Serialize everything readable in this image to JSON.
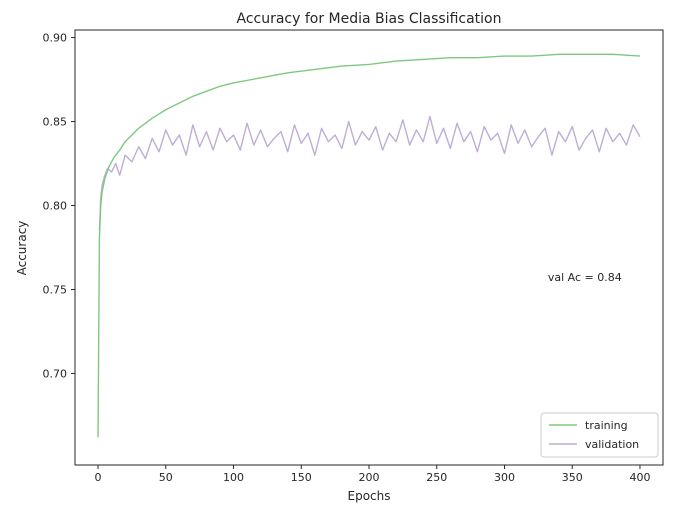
{
  "chart_data": {
    "type": "line",
    "title": "Accuracy for Media Bias Classification",
    "xlabel": "Epochs",
    "ylabel": "Accuracy",
    "xlim": [
      -17,
      417
    ],
    "ylim": [
      0.6455,
      0.9045
    ],
    "xticks": [
      0,
      50,
      100,
      150,
      200,
      250,
      300,
      350,
      400
    ],
    "yticks": [
      0.7,
      0.75,
      0.8,
      0.85,
      0.9
    ],
    "ytick_labels": [
      "0.70",
      "0.75",
      "0.80",
      "0.85",
      "0.90"
    ],
    "grid": false,
    "legend_position": "lower-right",
    "annotation": {
      "text": "val Ac = 0.84",
      "x": 332,
      "y": 0.7575
    },
    "series": [
      {
        "name": "training",
        "color": "#7fc97f",
        "x": [
          0,
          1,
          2,
          3,
          5,
          8,
          12,
          16,
          20,
          25,
          30,
          40,
          50,
          60,
          70,
          80,
          90,
          100,
          120,
          140,
          160,
          180,
          200,
          220,
          240,
          260,
          280,
          300,
          320,
          340,
          360,
          380,
          400
        ],
        "values": [
          0.662,
          0.78,
          0.8,
          0.808,
          0.816,
          0.823,
          0.829,
          0.833,
          0.838,
          0.842,
          0.846,
          0.852,
          0.857,
          0.861,
          0.865,
          0.868,
          0.871,
          0.873,
          0.876,
          0.879,
          0.881,
          0.883,
          0.884,
          0.886,
          0.887,
          0.888,
          0.888,
          0.889,
          0.889,
          0.89,
          0.89,
          0.89,
          0.889
        ]
      },
      {
        "name": "validation",
        "color": "#beaed4",
        "x": [
          1,
          2,
          3,
          5,
          7,
          10,
          13,
          16,
          20,
          25,
          30,
          35,
          40,
          45,
          50,
          55,
          60,
          65,
          70,
          75,
          80,
          85,
          90,
          95,
          100,
          105,
          110,
          115,
          120,
          125,
          130,
          135,
          140,
          145,
          150,
          155,
          160,
          165,
          170,
          175,
          180,
          185,
          190,
          195,
          200,
          205,
          210,
          215,
          220,
          225,
          230,
          235,
          240,
          245,
          250,
          255,
          260,
          265,
          270,
          275,
          280,
          285,
          290,
          295,
          300,
          305,
          310,
          315,
          320,
          325,
          330,
          335,
          340,
          345,
          350,
          355,
          360,
          365,
          370,
          375,
          380,
          385,
          390,
          395,
          400
        ],
        "values": [
          0.785,
          0.805,
          0.812,
          0.818,
          0.822,
          0.82,
          0.825,
          0.818,
          0.83,
          0.826,
          0.835,
          0.828,
          0.84,
          0.832,
          0.845,
          0.836,
          0.842,
          0.83,
          0.848,
          0.835,
          0.844,
          0.833,
          0.846,
          0.838,
          0.842,
          0.833,
          0.849,
          0.836,
          0.845,
          0.835,
          0.84,
          0.844,
          0.832,
          0.848,
          0.837,
          0.843,
          0.83,
          0.846,
          0.838,
          0.842,
          0.834,
          0.85,
          0.836,
          0.844,
          0.839,
          0.847,
          0.833,
          0.843,
          0.838,
          0.851,
          0.836,
          0.845,
          0.838,
          0.853,
          0.837,
          0.846,
          0.834,
          0.849,
          0.838,
          0.844,
          0.832,
          0.847,
          0.839,
          0.843,
          0.831,
          0.848,
          0.837,
          0.845,
          0.835,
          0.841,
          0.846,
          0.83,
          0.844,
          0.838,
          0.847,
          0.833,
          0.84,
          0.845,
          0.832,
          0.846,
          0.838,
          0.843,
          0.836,
          0.848,
          0.841
        ]
      }
    ]
  }
}
